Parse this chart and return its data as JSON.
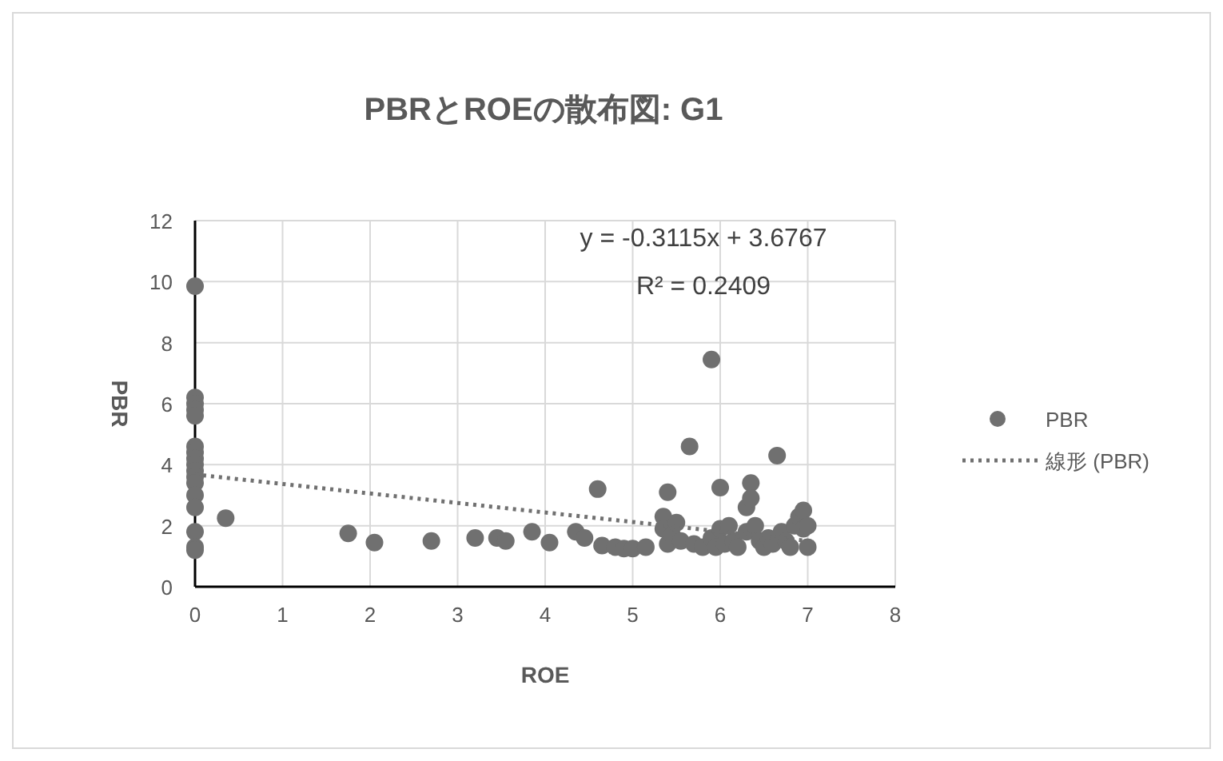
{
  "chart_data": {
    "type": "scatter",
    "title": "PBRとROEの散布図: G1",
    "xlabel": "ROE",
    "ylabel": "PBR",
    "xlim": [
      0,
      8
    ],
    "xticks": [
      0,
      1,
      2,
      3,
      4,
      5,
      6,
      7,
      8
    ],
    "ylim": [
      0,
      12
    ],
    "yticks": [
      0,
      2,
      4,
      6,
      8,
      10,
      12
    ],
    "grid": true,
    "legend": "right",
    "annotations": [
      "y = -0.3115x + 3.6767",
      "R² = 0.2409"
    ],
    "series": [
      {
        "name": "PBR",
        "marker": "circle",
        "color": "#707070",
        "x": [
          0,
          0,
          0,
          0,
          0,
          0,
          0,
          0,
          0,
          0,
          0,
          0,
          0,
          0,
          0,
          0,
          0,
          0.35,
          1.75,
          2.05,
          2.7,
          3.2,
          3.45,
          3.55,
          3.85,
          4.05,
          4.35,
          4.45,
          4.6,
          4.65,
          4.8,
          4.9,
          5.0,
          5.15,
          5.35,
          5.35,
          5.4,
          5.4,
          5.45,
          5.5,
          5.55,
          5.65,
          5.7,
          5.8,
          5.9,
          5.9,
          5.95,
          6.0,
          6.0,
          6.05,
          6.1,
          6.15,
          6.2,
          6.3,
          6.3,
          6.35,
          6.35,
          6.4,
          6.45,
          6.5,
          6.55,
          6.6,
          6.65,
          6.7,
          6.75,
          6.8,
          6.85,
          6.9,
          6.95,
          6.95,
          7.0,
          7.0
        ],
        "values": [
          9.85,
          6.2,
          6.0,
          5.8,
          5.6,
          4.6,
          4.4,
          4.2,
          4.0,
          3.8,
          3.6,
          3.4,
          3.0,
          2.6,
          1.8,
          1.3,
          1.2,
          2.25,
          1.75,
          1.45,
          1.5,
          1.6,
          1.6,
          1.5,
          1.8,
          1.45,
          1.8,
          1.6,
          3.2,
          1.35,
          1.3,
          1.25,
          1.25,
          1.3,
          2.3,
          1.9,
          3.1,
          1.4,
          1.7,
          2.1,
          1.5,
          4.6,
          1.4,
          1.3,
          7.45,
          1.6,
          1.3,
          3.25,
          1.9,
          1.4,
          2.0,
          1.5,
          1.3,
          2.6,
          1.8,
          3.4,
          2.9,
          2.0,
          1.5,
          1.3,
          1.6,
          1.4,
          4.3,
          1.8,
          1.5,
          1.3,
          2.0,
          2.3,
          2.5,
          1.9,
          1.3,
          2.0
        ]
      },
      {
        "name": "線形 (PBR)",
        "type": "line",
        "line_style": "dotted",
        "color": "#707070",
        "x": [
          0,
          7
        ],
        "values": [
          3.68,
          1.5
        ]
      }
    ]
  }
}
